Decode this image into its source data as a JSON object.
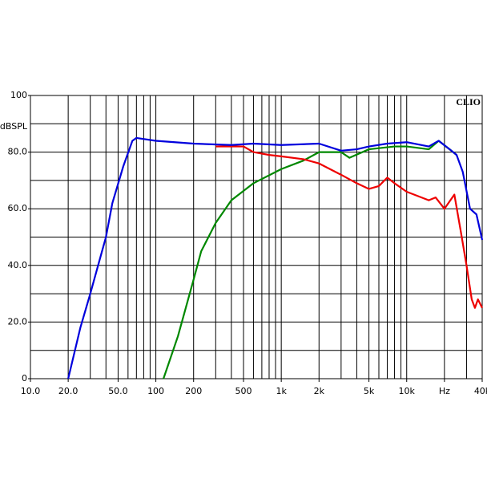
{
  "chart_data": {
    "type": "line",
    "brand": "CLIO",
    "ylabel": "dBSPL",
    "xscale": "log",
    "grid": true,
    "xlim": [
      10,
      40000
    ],
    "ylim": [
      0,
      100
    ],
    "xticks": [
      {
        "value": 10,
        "label": "10.0"
      },
      {
        "value": 20,
        "label": "20.0"
      },
      {
        "value": 50,
        "label": "50.0"
      },
      100,
      200,
      500,
      {
        "value": 1000,
        "label": "1k"
      },
      {
        "value": 2000,
        "label": "2k"
      },
      {
        "value": 5000,
        "label": "5k"
      },
      {
        "value": 10000,
        "label": "10k"
      },
      {
        "value": 20000,
        "label": "Hz"
      },
      {
        "value": 40000,
        "label": "40k"
      }
    ],
    "xgrid": [
      10,
      20,
      30,
      40,
      50,
      60,
      70,
      80,
      90,
      100,
      200,
      300,
      400,
      500,
      600,
      700,
      800,
      900,
      1000,
      2000,
      3000,
      4000,
      5000,
      6000,
      7000,
      8000,
      9000,
      10000,
      20000,
      30000,
      40000
    ],
    "yticks": [
      0,
      {
        "value": 20,
        "label": "20.0"
      },
      {
        "value": 40,
        "label": "40.0"
      },
      {
        "value": 60,
        "label": "60.0"
      },
      {
        "value": 80,
        "label": "80.0"
      },
      100
    ],
    "ygrid": [
      0,
      10,
      20,
      30,
      40,
      50,
      60,
      70,
      80,
      90,
      100
    ],
    "series": [
      {
        "name": "green",
        "color": "#008800",
        "x": [
          115,
          150,
          200,
          230,
          300,
          400,
          600,
          1000,
          1500,
          2000,
          3000,
          3500,
          5000,
          8000,
          10000,
          15000,
          18000,
          22000,
          25000
        ],
        "values": [
          0,
          15,
          35,
          45,
          55,
          63,
          69,
          74,
          77,
          80,
          80,
          78,
          81,
          82,
          82,
          81,
          84,
          81,
          79
        ]
      },
      {
        "name": "red",
        "color": "#ee0000",
        "x": [
          300,
          500,
          600,
          800,
          1000,
          1500,
          2000,
          3000,
          4000,
          5000,
          6000,
          7000,
          8000,
          10000,
          15000,
          17000,
          20000,
          24000,
          27000,
          30000,
          33000,
          35000,
          37000,
          40000
        ],
        "values": [
          82,
          82,
          80,
          79,
          78.5,
          77.5,
          76,
          72,
          69,
          67,
          68,
          71,
          69,
          66,
          63,
          64,
          60,
          65,
          52,
          40,
          28,
          25,
          28,
          25
        ]
      },
      {
        "name": "blue",
        "color": "#0000dd",
        "x": [
          20,
          25,
          30,
          40,
          45,
          55,
          65,
          70,
          100,
          200,
          400,
          600,
          1000,
          2000,
          3000,
          4000,
          5000,
          7000,
          10000,
          15000,
          18000,
          22000,
          25000,
          28000,
          32000,
          36000,
          40000
        ],
        "values": [
          0,
          18,
          30,
          50,
          62,
          75,
          84,
          85,
          84,
          83,
          82.5,
          83,
          82.5,
          83,
          80.5,
          81,
          82,
          83,
          83.5,
          82,
          84,
          81,
          79,
          73,
          60,
          58,
          49
        ]
      }
    ]
  }
}
